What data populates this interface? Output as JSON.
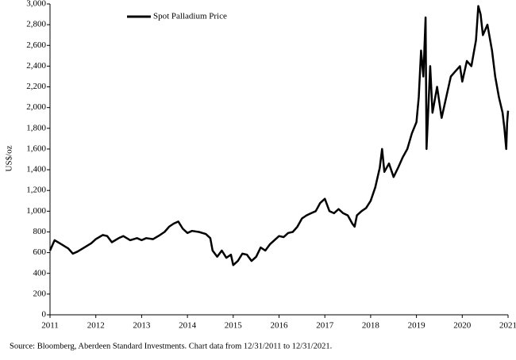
{
  "chart_data": {
    "type": "line",
    "y_label": "US$/oz",
    "source": "Source: Bloomberg,  Aberdeen Standard Investments. Chart data from  12/31/2011   to 12/31/2021.",
    "legend": "top-left",
    "xlim": [
      2011,
      2021
    ],
    "xticks": [
      2011,
      2012,
      2013,
      2014,
      2015,
      2016,
      2017,
      2018,
      2019,
      2020,
      2021
    ],
    "ylim": [
      0,
      3000
    ],
    "yticks": [
      0,
      200,
      400,
      600,
      800,
      {
        "value": 1000,
        "label": "1,000"
      },
      {
        "value": 1200,
        "label": "1,200"
      },
      {
        "value": 1400,
        "label": "1,400"
      },
      {
        "value": 1600,
        "label": "1,600"
      },
      {
        "value": 1800,
        "label": "1,800"
      },
      {
        "value": 2000,
        "label": "2,000"
      },
      {
        "value": 2200,
        "label": "2,200"
      },
      {
        "value": 2400,
        "label": "2,400"
      },
      {
        "value": 2600,
        "label": "2,600"
      },
      {
        "value": 2800,
        "label": "2,800"
      },
      {
        "value": 3000,
        "label": "3,000"
      }
    ],
    "series": [
      {
        "name": "Spot Palladium Price",
        "color": "#000000",
        "x": [
          2011.0,
          2011.1,
          2011.25,
          2011.4,
          2011.5,
          2011.6,
          2011.75,
          2011.9,
          2012.0,
          2012.15,
          2012.25,
          2012.35,
          2012.5,
          2012.6,
          2012.75,
          2012.9,
          2013.0,
          2013.1,
          2013.25,
          2013.4,
          2013.5,
          2013.6,
          2013.7,
          2013.8,
          2013.9,
          2014.0,
          2014.1,
          2014.25,
          2014.4,
          2014.5,
          2014.55,
          2014.65,
          2014.75,
          2014.85,
          2014.95,
          2015.0,
          2015.1,
          2015.2,
          2015.3,
          2015.4,
          2015.5,
          2015.6,
          2015.7,
          2015.8,
          2015.9,
          2016.0,
          2016.1,
          2016.2,
          2016.3,
          2016.4,
          2016.5,
          2016.6,
          2016.7,
          2016.8,
          2016.9,
          2017.0,
          2017.1,
          2017.2,
          2017.3,
          2017.4,
          2017.5,
          2017.6,
          2017.65,
          2017.7,
          2017.8,
          2017.9,
          2018.0,
          2018.1,
          2018.2,
          2018.25,
          2018.3,
          2018.4,
          2018.5,
          2018.6,
          2018.7,
          2018.8,
          2018.9,
          2019.0,
          2019.05,
          2019.1,
          2019.15,
          2019.2,
          2019.22,
          2019.3,
          2019.35,
          2019.45,
          2019.55,
          2019.65,
          2019.75,
          2019.85,
          2019.95,
          2020.0,
          2020.1,
          2020.2,
          2020.3,
          2020.35,
          2020.4,
          2020.45,
          2020.55,
          2020.65,
          2020.72,
          2020.8,
          2020.88,
          2020.92,
          2020.96,
          2020.98,
          2021.0
        ],
        "values": [
          620,
          720,
          680,
          640,
          590,
          610,
          650,
          690,
          730,
          770,
          760,
          700,
          740,
          760,
          720,
          740,
          720,
          740,
          730,
          770,
          800,
          850,
          880,
          900,
          830,
          790,
          810,
          800,
          780,
          740,
          620,
          560,
          620,
          550,
          580,
          480,
          520,
          590,
          580,
          520,
          560,
          650,
          620,
          680,
          720,
          760,
          750,
          790,
          800,
          850,
          930,
          960,
          980,
          1000,
          1080,
          1120,
          1000,
          980,
          1020,
          980,
          960,
          880,
          850,
          960,
          1000,
          1030,
          1100,
          1230,
          1420,
          1600,
          1380,
          1460,
          1330,
          1420,
          1520,
          1600,
          1750,
          1860,
          2100,
          2550,
          2300,
          2870,
          1600,
          2400,
          1950,
          2200,
          1900,
          2100,
          2300,
          2350,
          2400,
          2250,
          2450,
          2400,
          2650,
          2980,
          2900,
          2700,
          2800,
          2550,
          2300,
          2100,
          1950,
          1800,
          1600,
          1850,
          1970
        ]
      }
    ]
  }
}
